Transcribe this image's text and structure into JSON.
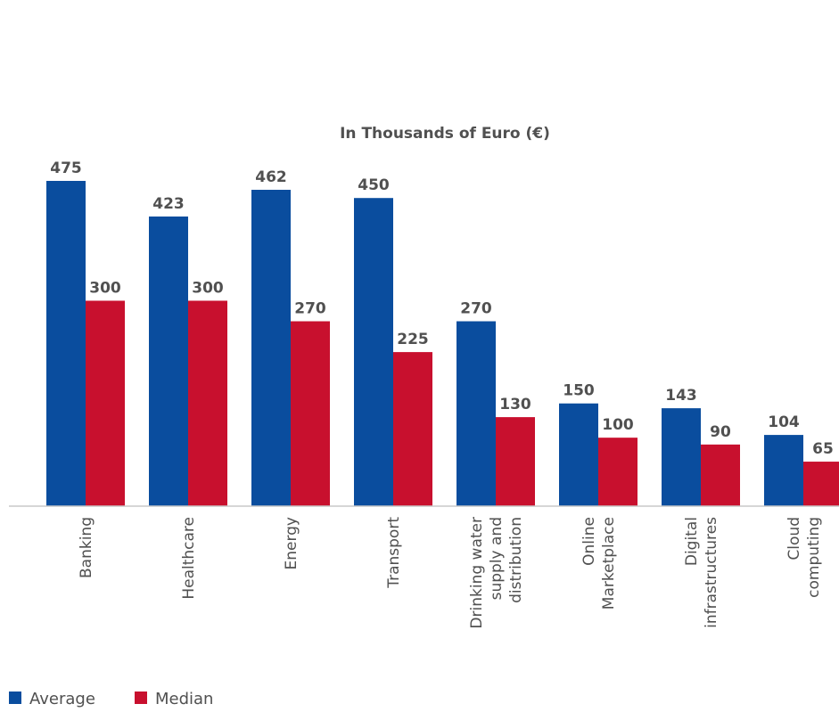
{
  "chart_data": {
    "type": "bar",
    "title": "In Thousands of Euro (€)",
    "xlabel": "",
    "ylabel": "",
    "ylim": [
      0,
      500
    ],
    "grid": false,
    "legend_position": "bottom-left",
    "categories": [
      [
        "Banking"
      ],
      [
        "Healthcare"
      ],
      [
        "Energy"
      ],
      [
        "Transport"
      ],
      [
        "Drinking water",
        "supply and",
        "distribution"
      ],
      [
        "Online",
        "Marketplace"
      ],
      [
        "Digital",
        "infrastructures"
      ],
      [
        "Cloud",
        "computing"
      ]
    ],
    "series": [
      {
        "name": "Average",
        "color": "#0A4D9E",
        "values": [
          475,
          423,
          462,
          450,
          270,
          150,
          143,
          104
        ]
      },
      {
        "name": "Median",
        "color": "#C8102E",
        "values": [
          300,
          300,
          270,
          225,
          130,
          100,
          90,
          65
        ]
      }
    ]
  }
}
